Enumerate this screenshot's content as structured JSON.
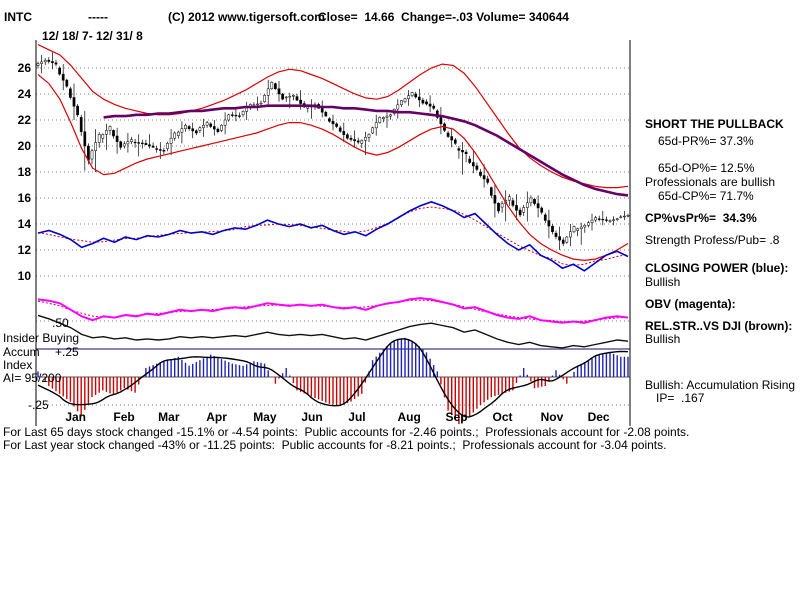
{
  "header": {
    "symbol": "INTC",
    "dashes": "-----",
    "copyright": "(C) 2012 www.tigersoft.com",
    "quote": "Close=  14.66  Change=-.03 Volume= 340644",
    "date_range": "12/ 18/ 7- 12/ 31/ 8"
  },
  "left_labels": {
    "lvl_50": ".50",
    "insider": "Insider Buying",
    "lvl_p25": "+.25",
    "accum": "Accum",
    "index": "Index",
    "ai": "AI= 95/200",
    "lvl_m25": "-.25"
  },
  "right_panel": {
    "lines": [
      "SHORT THE PULLBACK",
      "65d-PR%= 37.3%",
      "65d-OP%= 12.5%",
      "Professionals are bullish",
      "65d-CP%= 71.7%",
      "CP%vsPr%=  34.3%",
      "Strength Profess/Pub= .8",
      "CLOSING POWER (blue):",
      "Bullish",
      "OBV (magenta):",
      "REL.STR..VS DJI (brown):",
      "Bullish",
      "Bullish: Accumulation Rising",
      "IP=  .167"
    ]
  },
  "footer": {
    "line1": "For Last 65 days stock changed -15.1% or -4.54 points:  Public accounts for -2.46 points.;  Professionals account for -2.08 points.",
    "line2": "For Last year stock changed -43% or -11.25 points:  Public accounts for -8.21 points.;  Professionals account for -3.04 points."
  },
  "chart_data": {
    "type": "candlestick",
    "symbol": "INTC",
    "date_range": "12/18/07 - 12/31/08",
    "quote": {
      "close": 14.66,
      "change": -0.03,
      "volume": 340644
    },
    "price_axis_ticks": [
      26,
      24,
      22,
      20,
      18,
      16,
      14,
      12,
      10
    ],
    "months": [
      "Jan",
      "Feb",
      "Mar",
      "Apr",
      "May",
      "Jun",
      "Jul",
      "Aug",
      "Sep",
      "Oct",
      "Nov",
      "Dec"
    ],
    "month_week_index": [
      2.5,
      6.9,
      11.0,
      15.4,
      19.7,
      24.1,
      28.4,
      32.9,
      37.3,
      41.6,
      46.0,
      50.3
    ],
    "panel_levels": [
      0.5,
      0.25,
      -0.25
    ],
    "candles_weekly_ohlc": [
      [
        26.2,
        27.0,
        25.6,
        26.6
      ],
      [
        26.6,
        27.2,
        25.9,
        26.3
      ],
      [
        26.0,
        26.3,
        24.3,
        24.6
      ],
      [
        24.4,
        24.8,
        22.0,
        22.4
      ],
      [
        22.2,
        22.7,
        18.1,
        18.9
      ],
      [
        19.0,
        21.3,
        18.0,
        20.9
      ],
      [
        20.6,
        21.7,
        19.7,
        21.5
      ],
      [
        21.2,
        21.4,
        19.4,
        19.9
      ],
      [
        20.0,
        21.0,
        19.5,
        20.5
      ],
      [
        20.3,
        20.9,
        19.2,
        20.2
      ],
      [
        20.2,
        20.9,
        19.8,
        19.9
      ],
      [
        19.8,
        20.3,
        19.0,
        19.6
      ],
      [
        19.8,
        21.3,
        19.3,
        21.0
      ],
      [
        20.8,
        21.9,
        20.2,
        21.6
      ],
      [
        21.5,
        21.8,
        20.6,
        21.0
      ],
      [
        21.2,
        22.1,
        20.7,
        21.8
      ],
      [
        21.7,
        22.0,
        20.8,
        21.1
      ],
      [
        21.2,
        22.6,
        20.9,
        22.4
      ],
      [
        22.4,
        23.0,
        21.9,
        22.3
      ],
      [
        22.4,
        23.4,
        22.0,
        23.2
      ],
      [
        23.1,
        23.8,
        22.7,
        23.3
      ],
      [
        23.4,
        25.1,
        23.2,
        24.9
      ],
      [
        24.8,
        25.0,
        23.4,
        23.6
      ],
      [
        23.7,
        24.1,
        22.9,
        23.9
      ],
      [
        23.8,
        24.3,
        22.8,
        23.0
      ],
      [
        22.9,
        23.6,
        22.1,
        23.2
      ],
      [
        23.2,
        23.5,
        22.2,
        22.3
      ],
      [
        22.1,
        22.4,
        21.2,
        21.5
      ],
      [
        21.4,
        21.8,
        20.3,
        20.6
      ],
      [
        20.6,
        21.2,
        19.9,
        20.3
      ],
      [
        20.2,
        21.1,
        19.3,
        20.9
      ],
      [
        21.0,
        22.4,
        20.8,
        22.2
      ],
      [
        22.1,
        22.6,
        21.4,
        22.4
      ],
      [
        22.5,
        23.6,
        22.1,
        23.5
      ],
      [
        23.4,
        24.3,
        23.1,
        24.1
      ],
      [
        24.0,
        24.4,
        23.0,
        23.3
      ],
      [
        23.4,
        23.9,
        22.6,
        22.9
      ],
      [
        22.7,
        23.0,
        20.9,
        21.2
      ],
      [
        21.0,
        21.4,
        19.9,
        20.2
      ],
      [
        19.8,
        20.3,
        17.8,
        19.4
      ],
      [
        19.0,
        19.6,
        17.9,
        18.2
      ],
      [
        18.0,
        18.6,
        16.8,
        17.2
      ],
      [
        16.8,
        17.0,
        14.5,
        15.0
      ],
      [
        15.3,
        16.6,
        14.2,
        16.1
      ],
      [
        15.8,
        16.3,
        14.3,
        14.7
      ],
      [
        14.9,
        16.5,
        14.2,
        16.0
      ],
      [
        15.9,
        16.2,
        14.5,
        14.9
      ],
      [
        14.7,
        15.1,
        12.9,
        13.4
      ],
      [
        13.3,
        13.8,
        12.0,
        12.5
      ],
      [
        12.6,
        14.0,
        12.3,
        13.8
      ],
      [
        13.5,
        14.1,
        12.4,
        13.9
      ],
      [
        13.9,
        14.8,
        13.5,
        14.5
      ],
      [
        14.4,
        15.0,
        13.9,
        14.3
      ],
      [
        14.2,
        14.6,
        13.9,
        14.4
      ],
      [
        14.5,
        15.0,
        14.3,
        14.66
      ]
    ],
    "upper_band": [
      27.8,
      27.4,
      27.0,
      26.2,
      25.2,
      24.2,
      23.6,
      23.2,
      22.9,
      22.7,
      22.5,
      22.4,
      22.4,
      22.5,
      22.7,
      22.9,
      23.2,
      23.5,
      23.9,
      24.3,
      24.8,
      25.3,
      25.7,
      25.9,
      25.8,
      25.5,
      25.2,
      24.8,
      24.4,
      24.0,
      23.7,
      23.6,
      23.8,
      24.3,
      24.9,
      25.5,
      26.0,
      26.3,
      26.2,
      25.6,
      24.6,
      23.4,
      22.2,
      21.0,
      19.9,
      19.1,
      18.5,
      18.0,
      17.6,
      17.3,
      17.1,
      16.9,
      16.8,
      16.8,
      16.9
    ],
    "lower_band": [
      25.5,
      24.8,
      23.6,
      21.8,
      19.8,
      18.3,
      17.8,
      17.9,
      18.3,
      18.7,
      19.0,
      19.2,
      19.4,
      19.6,
      19.8,
      20.0,
      20.2,
      20.4,
      20.6,
      20.8,
      21.0,
      21.3,
      21.6,
      21.8,
      21.8,
      21.6,
      21.3,
      20.9,
      20.4,
      19.9,
      19.5,
      19.3,
      19.5,
      19.9,
      20.4,
      20.9,
      21.3,
      21.5,
      21.3,
      20.6,
      19.5,
      18.2,
      16.8,
      15.4,
      14.2,
      13.2,
      12.5,
      12.0,
      11.6,
      11.3,
      11.2,
      11.3,
      11.6,
      12.0,
      12.5
    ],
    "ma_200day": [
      null,
      null,
      null,
      null,
      null,
      null,
      22.2,
      22.3,
      22.3,
      22.4,
      22.4,
      22.5,
      22.5,
      22.6,
      22.7,
      22.7,
      22.8,
      22.9,
      22.9,
      23.0,
      23.0,
      23.1,
      23.1,
      23.1,
      23.1,
      23.1,
      23.0,
      23.0,
      22.9,
      22.9,
      22.8,
      22.7,
      22.7,
      22.6,
      22.6,
      22.5,
      22.4,
      22.3,
      22.1,
      21.9,
      21.6,
      21.2,
      20.8,
      20.3,
      19.8,
      19.3,
      18.8,
      18.3,
      17.8,
      17.4,
      17.0,
      16.7,
      16.5,
      16.3,
      16.2
    ],
    "closing_power": [
      13.3,
      13.5,
      13.2,
      12.8,
      12.2,
      12.5,
      12.9,
      12.6,
      13.0,
      12.8,
      13.1,
      13.0,
      13.2,
      13.5,
      13.3,
      13.4,
      13.2,
      13.5,
      13.7,
      13.6,
      13.9,
      14.3,
      14.0,
      13.8,
      14.0,
      13.7,
      13.9,
      13.5,
      13.2,
      13.4,
      13.1,
      13.6,
      14.0,
      14.5,
      15.0,
      15.4,
      15.7,
      15.4,
      15.0,
      14.5,
      14.8,
      14.0,
      13.2,
      12.5,
      12.0,
      12.4,
      11.6,
      11.2,
      10.6,
      10.9,
      10.4,
      11.0,
      11.6,
      11.9,
      11.5
    ],
    "obv": [
      8.2,
      8.1,
      7.9,
      7.4,
      6.9,
      6.6,
      6.9,
      6.8,
      7.0,
      6.9,
      7.1,
      7.0,
      7.2,
      7.4,
      7.3,
      7.4,
      7.3,
      7.5,
      7.6,
      7.5,
      7.7,
      7.9,
      7.8,
      7.7,
      7.8,
      7.7,
      7.8,
      7.6,
      7.5,
      7.6,
      7.4,
      7.7,
      7.9,
      8.0,
      8.2,
      8.3,
      8.2,
      8.0,
      7.8,
      7.5,
      7.6,
      7.3,
      7.0,
      6.8,
      6.7,
      6.9,
      6.6,
      6.5,
      6.4,
      6.5,
      6.4,
      6.6,
      6.8,
      6.9,
      6.8
    ],
    "rel_str_vs_dji": [
      0.55,
      0.52,
      0.48,
      0.44,
      0.38,
      0.35,
      0.36,
      0.34,
      0.35,
      0.33,
      0.34,
      0.33,
      0.34,
      0.36,
      0.35,
      0.36,
      0.35,
      0.36,
      0.37,
      0.36,
      0.38,
      0.4,
      0.38,
      0.37,
      0.38,
      0.37,
      0.38,
      0.36,
      0.34,
      0.35,
      0.33,
      0.36,
      0.39,
      0.42,
      0.45,
      0.47,
      0.48,
      0.46,
      0.44,
      0.4,
      0.42,
      0.38,
      0.34,
      0.31,
      0.29,
      0.31,
      0.28,
      0.27,
      0.26,
      0.28,
      0.27,
      0.29,
      0.31,
      0.33,
      0.32
    ],
    "accum_index_bars": [
      0.05,
      -0.08,
      -0.15,
      -0.22,
      -0.35,
      -0.18,
      -0.12,
      -0.16,
      -0.1,
      -0.14,
      0.08,
      0.12,
      0.15,
      0.18,
      0.1,
      0.15,
      0.2,
      0.16,
      0.12,
      0.1,
      0.14,
      0.12,
      -0.06,
      0.08,
      -0.12,
      -0.16,
      -0.2,
      -0.24,
      -0.26,
      -0.22,
      -0.15,
      0.15,
      0.25,
      0.32,
      0.35,
      0.3,
      0.22,
      0.05,
      -0.3,
      -0.42,
      -0.35,
      -0.25,
      -0.18,
      -0.15,
      -0.12,
      0.08,
      -0.1,
      -0.08,
      0.06,
      -0.06,
      0.1,
      0.15,
      0.2,
      0.22,
      0.18
    ],
    "colors": {
      "band": "#dd0000",
      "ma": "#660066",
      "closing_power": "#0000cc",
      "obv": "#ff00ff",
      "rel_str": "#111111",
      "accum_pos": "#2222bb",
      "accum_neg": "#cc0000",
      "separator": "#3b3b8c"
    }
  }
}
